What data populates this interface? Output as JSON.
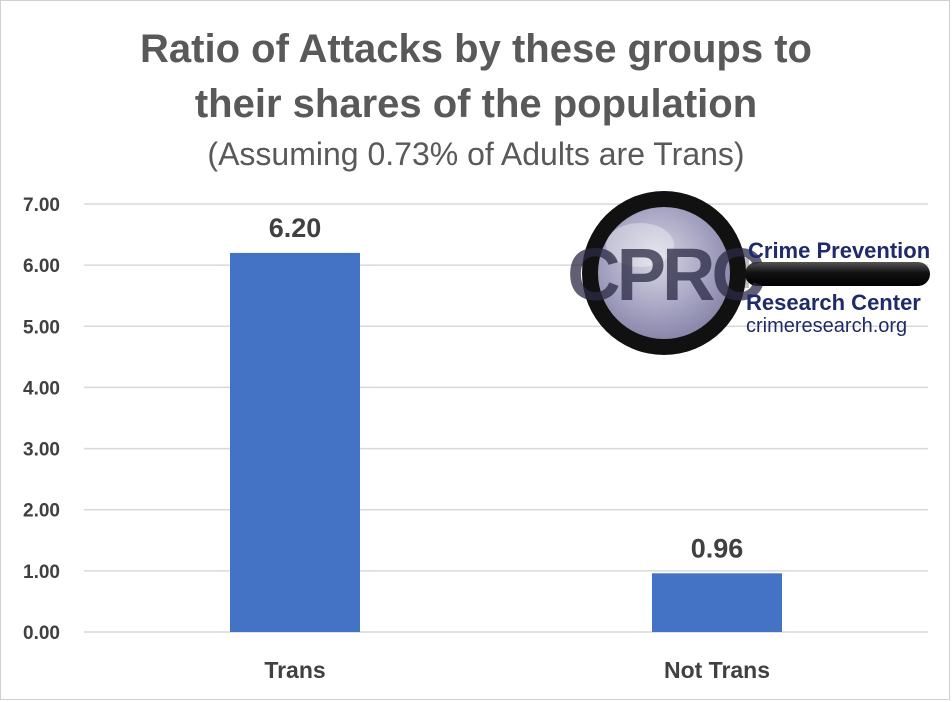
{
  "chart_data": {
    "type": "bar",
    "title_line1": "Ratio of Attacks by these groups to",
    "title_line2": "their shares of the population",
    "subtitle": "(Assuming 0.73% of Adults are Trans)",
    "categories": [
      "Trans",
      "Not Trans"
    ],
    "values": [
      6.2,
      0.96
    ],
    "data_labels": [
      "6.20",
      "0.96"
    ],
    "ylim": [
      0,
      7
    ],
    "yticks": [
      0,
      1,
      2,
      3,
      4,
      5,
      6,
      7
    ],
    "ytick_labels": [
      "0.00",
      "1.00",
      "2.00",
      "3.00",
      "4.00",
      "5.00",
      "6.00",
      "7.00"
    ],
    "xlabel": "",
    "ylabel": "",
    "grid": true,
    "bar_color": "#4472C4",
    "grid_color": "#d9d9d9"
  },
  "logo": {
    "monogram": "CPRC",
    "line1": "Crime Prevention",
    "line2": "Research Center",
    "line3": "crimeresearch.org",
    "text_color": "#1f2a6b"
  }
}
